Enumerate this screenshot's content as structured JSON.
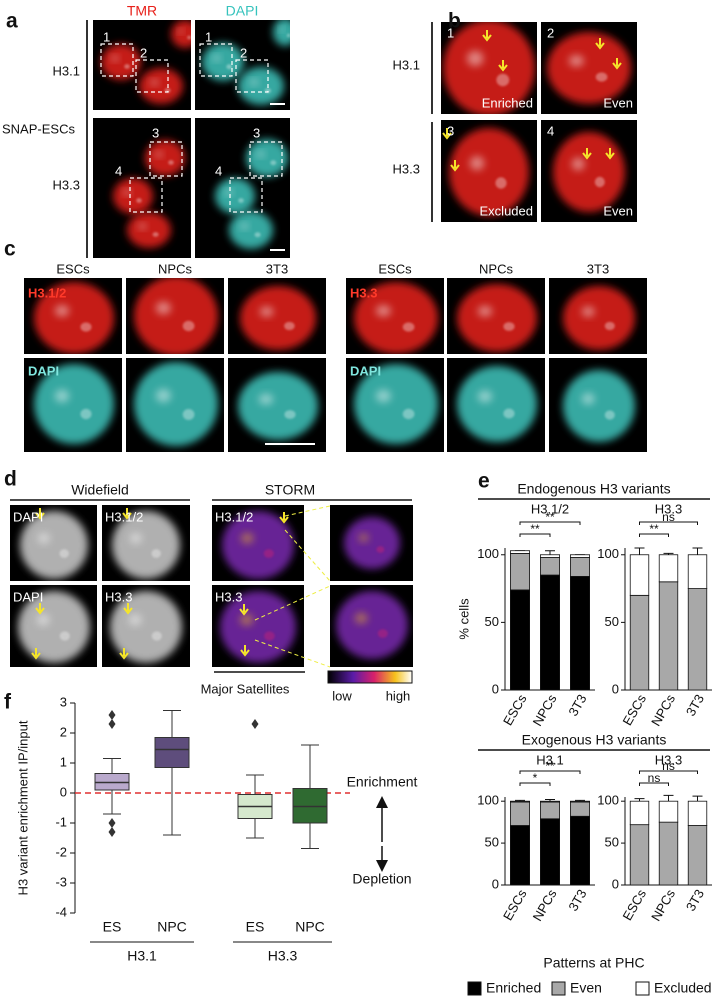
{
  "figure": {
    "a": {
      "panel_label": "a",
      "columns": [
        "TMR",
        "DAPI"
      ],
      "rows": [
        "H3.1",
        "H3.3"
      ],
      "side_label": "SNAP-ESCs",
      "roi": [
        "1",
        "2",
        "1",
        "2",
        "3",
        "4",
        "3",
        "4"
      ]
    },
    "b": {
      "panel_label": "b",
      "rows": [
        "H3.1",
        "H3.3"
      ],
      "tiles": [
        {
          "number": "1",
          "caption": "Enriched"
        },
        {
          "number": "2",
          "caption": "Even"
        },
        {
          "number": "3",
          "caption": "Excluded"
        },
        {
          "number": "4",
          "caption": "Even"
        }
      ]
    },
    "c": {
      "panel_label": "c",
      "left": {
        "columns": [
          "ESCs",
          "NPCs",
          "3T3"
        ],
        "tiles": [
          "H3.1/2",
          "DAPI"
        ]
      },
      "right": {
        "columns": [
          "ESCs",
          "NPCs",
          "3T3"
        ],
        "tiles": [
          "H3.3",
          "DAPI"
        ]
      }
    },
    "d": {
      "panel_label": "d",
      "headers": [
        "Widefield",
        "STORM"
      ],
      "tiles": [
        "DAPI",
        "H3.1/2",
        "H3.1/2",
        "DAPI",
        "H3.3",
        "H3.3"
      ],
      "colorbar": [
        "low",
        "high"
      ]
    },
    "e": {
      "panel_label": "e"
    },
    "f": {
      "panel_label": "f"
    }
  },
  "chart_data": [
    {
      "type": "stacked_bar_panels",
      "categories": [
        "ESCs",
        "NPCs",
        "3T3"
      ],
      "ylim": [
        0,
        105
      ],
      "yticks": [
        0,
        50,
        100
      ],
      "legend_title": "Patterns at PHC",
      "legend": [
        {
          "name": "Enriched",
          "color": "#000000"
        },
        {
          "name": "Even",
          "color": "#a8a8a8"
        },
        {
          "name": "Excluded",
          "color": "#ffffff"
        }
      ],
      "groups": [
        {
          "title": "Endogenous H3 variants",
          "plots": [
            {
              "subtitle": "H3.1/2",
              "ylabel": "% cells",
              "significance": [
                null,
                "**",
                "**"
              ],
              "series": [
                {
                  "values": [
                    74,
                    85,
                    84
                  ],
                  "errors": [
                    6,
                    5,
                    3
                  ]
                },
                {
                  "values": [
                    27,
                    13,
                    14
                  ],
                  "errors": [
                    2,
                    5,
                    2
                  ]
                },
                {
                  "values": [
                    2,
                    2,
                    2
                  ]
                }
              ]
            },
            {
              "subtitle": "H3.3",
              "significance": [
                null,
                "**",
                "ns"
              ],
              "series": [
                {
                  "values": [
                    0,
                    0,
                    0
                  ]
                },
                {
                  "values": [
                    70,
                    80,
                    75
                  ],
                  "errors": [
                    6,
                    1,
                    5
                  ]
                },
                {
                  "values": [
                    30,
                    20,
                    25
                  ],
                  "errors": [
                    5,
                    1,
                    5
                  ]
                }
              ]
            }
          ]
        },
        {
          "title": "Exogenous H3 variants",
          "plots": [
            {
              "subtitle": "H3.1",
              "significance": [
                null,
                "*",
                "**"
              ],
              "series": [
                {
                  "values": [
                    71,
                    79,
                    82
                  ],
                  "errors": [
                    4,
                    5,
                    3
                  ]
                },
                {
                  "values": [
                    28,
                    20,
                    17
                  ],
                  "errors": [
                    2,
                    3,
                    2
                  ]
                },
                {
                  "values": [
                    1,
                    1,
                    1
                  ]
                }
              ]
            },
            {
              "subtitle": "H3.3",
              "significance": [
                null,
                "ns",
                "ns"
              ],
              "series": [
                {
                  "values": [
                    0,
                    0,
                    0
                  ]
                },
                {
                  "values": [
                    72,
                    75,
                    71
                  ],
                  "errors": [
                    2,
                    8,
                    5
                  ]
                },
                {
                  "values": [
                    28,
                    25,
                    29
                  ],
                  "errors": [
                    3,
                    7,
                    6
                  ]
                }
              ]
            }
          ]
        }
      ]
    },
    {
      "type": "box",
      "title": "Major Satellites",
      "ylabel": "H3 variant enrichment IP/input",
      "ylim": [
        -4,
        3
      ],
      "yticks": [
        -4,
        -3,
        -2,
        -1,
        0,
        1,
        2,
        3
      ],
      "reference_line": {
        "value": 0,
        "color": "#e03030"
      },
      "annotations": [
        "Enrichment",
        "Depletion"
      ],
      "groups": [
        {
          "label": "H3.1",
          "categories": [
            "ES",
            "NPC"
          ],
          "boxes": [
            {
              "color": "#b9a9cc",
              "whislo": -0.7,
              "q1": 0.1,
              "med": 0.35,
              "q3": 0.65,
              "whishi": 1.15,
              "fliers": [
                2.6,
                2.3,
                -1.0,
                -1.3
              ]
            },
            {
              "color": "#5e4d7c",
              "whislo": -1.4,
              "q1": 0.85,
              "med": 1.45,
              "q3": 1.85,
              "whishi": 2.75,
              "fliers": []
            }
          ]
        },
        {
          "label": "H3.3",
          "categories": [
            "ES",
            "NPC"
          ],
          "boxes": [
            {
              "color": "#d5e8cd",
              "whislo": -1.5,
              "q1": -0.85,
              "med": -0.45,
              "q3": -0.05,
              "whishi": 0.6,
              "fliers": [
                2.3
              ]
            },
            {
              "color": "#2f6a31",
              "whislo": -1.85,
              "q1": -1.0,
              "med": -0.45,
              "q3": 0.15,
              "whishi": 1.6,
              "fliers": []
            }
          ]
        }
      ]
    }
  ]
}
